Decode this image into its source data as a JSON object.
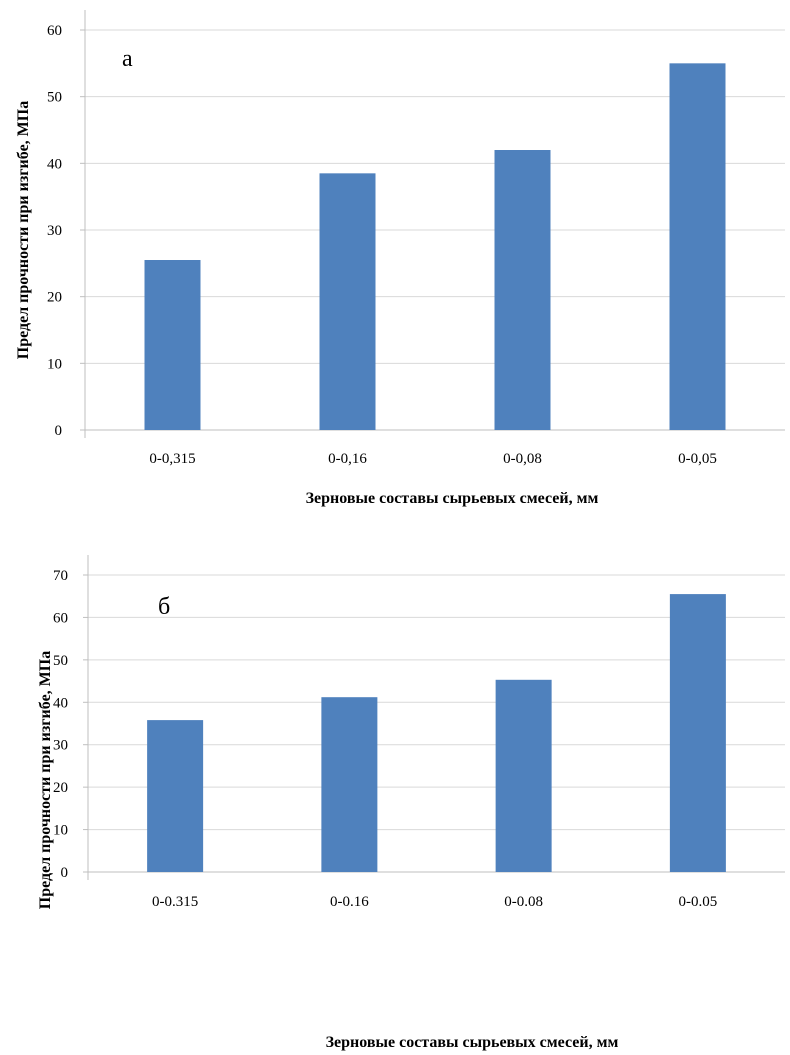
{
  "chart_data": [
    {
      "type": "bar",
      "panel_label": "а",
      "categories": [
        "0-0,315",
        "0-0,16",
        "0-0,08",
        "0-0,05"
      ],
      "values": [
        25.5,
        38.5,
        42,
        55
      ],
      "xlabel": "Зерновые составы сырьевых смесей, мм",
      "ylabel": "Предел прочности при изгибе, МПа",
      "ylim": [
        0,
        60
      ],
      "yticks": [
        0,
        10,
        20,
        30,
        40,
        50,
        60
      ],
      "grid": true,
      "bar_color": "#4f81bd"
    },
    {
      "type": "bar",
      "panel_label": "б",
      "categories": [
        "0-0.315",
        "0-0.16",
        "0-0.08",
        "0-0.05"
      ],
      "values": [
        35.8,
        41.2,
        45.3,
        65.5
      ],
      "xlabel": "Зерновые составы сырьевых смесей, мм",
      "ylabel": "Предел прочности при изгибе, МПа",
      "ylim": [
        0,
        70
      ],
      "yticks": [
        0,
        10,
        20,
        30,
        40,
        50,
        60,
        70
      ],
      "grid": true,
      "bar_color": "#4f81bd"
    }
  ]
}
